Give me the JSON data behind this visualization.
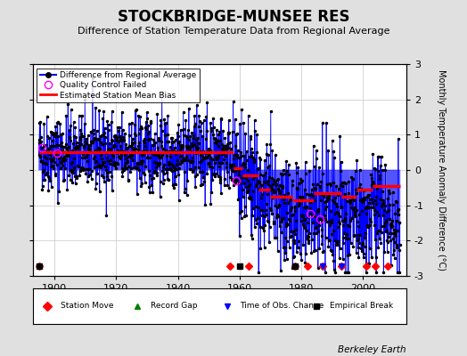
{
  "title": "STOCKBRIDGE-MUNSEE RES",
  "subtitle": "Difference of Station Temperature Data from Regional Average",
  "ylabel": "Monthly Temperature Anomaly Difference (°C)",
  "xlabel_years": [
    1900,
    1920,
    1940,
    1960,
    1980,
    2000
  ],
  "ylim": [
    -3,
    3
  ],
  "xlim": [
    1893,
    2014
  ],
  "background_color": "#e0e0e0",
  "plot_bg_color": "#ffffff",
  "line_color": "#0000ff",
  "dot_color": "#000000",
  "bias_color": "#ff0000",
  "qc_color": "#ff69b4",
  "grid_color": "#c8c8c8",
  "watermark": "Berkeley Earth",
  "seed": 42,
  "start_year": 1895,
  "end_year": 2012,
  "bias_segments": [
    {
      "start": 1895,
      "end": 1958,
      "bias": 0.5
    },
    {
      "start": 1958,
      "end": 1961,
      "bias": 0.05
    },
    {
      "start": 1961,
      "end": 1966,
      "bias": -0.15
    },
    {
      "start": 1966,
      "end": 1970,
      "bias": -0.55
    },
    {
      "start": 1970,
      "end": 1977,
      "bias": -0.75
    },
    {
      "start": 1977,
      "end": 1984,
      "bias": -0.85
    },
    {
      "start": 1984,
      "end": 1993,
      "bias": -0.65
    },
    {
      "start": 1993,
      "end": 1998,
      "bias": -0.75
    },
    {
      "start": 1998,
      "end": 2003,
      "bias": -0.55
    },
    {
      "start": 2003,
      "end": 2012,
      "bias": -0.45
    }
  ],
  "station_moves": [
    1895,
    1957,
    1963,
    1978,
    1982,
    1987,
    1993,
    2001,
    2004,
    2008
  ],
  "record_gaps": [],
  "obs_changes": [
    1987,
    1993
  ],
  "empirical_breaks": [
    1895,
    1960,
    1978
  ],
  "qc_failed_years_approx": [
    1896,
    1901,
    1959,
    1983,
    1986
  ]
}
